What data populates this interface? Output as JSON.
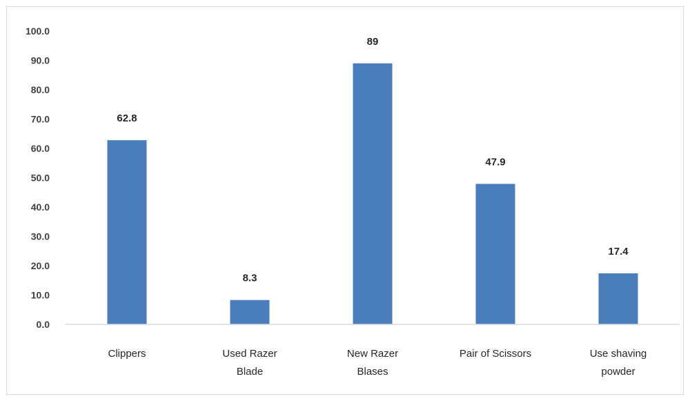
{
  "chart_data": {
    "type": "bar",
    "title": "",
    "xlabel": "",
    "ylabel": "",
    "categories": [
      [
        "Clippers"
      ],
      [
        "Used Razer",
        "Blade"
      ],
      [
        "New Razer",
        "Blases"
      ],
      [
        "Pair of Scissors"
      ],
      [
        "Use shaving",
        "powder"
      ]
    ],
    "values": [
      62.8,
      8.3,
      89,
      47.9,
      17.4
    ],
    "data_labels": [
      "62.8",
      "8.3",
      "89",
      "47.9",
      "17.4"
    ],
    "ylim": [
      0,
      100
    ],
    "yticks": [
      "0.0",
      "10.0",
      "20.0",
      "30.0",
      "40.0",
      "50.0",
      "60.0",
      "70.0",
      "80.0",
      "90.0",
      "100.0"
    ],
    "grid": false,
    "legend": "none",
    "bar_color": "#4a7ebb",
    "axis_color": "#d9d9d9"
  }
}
